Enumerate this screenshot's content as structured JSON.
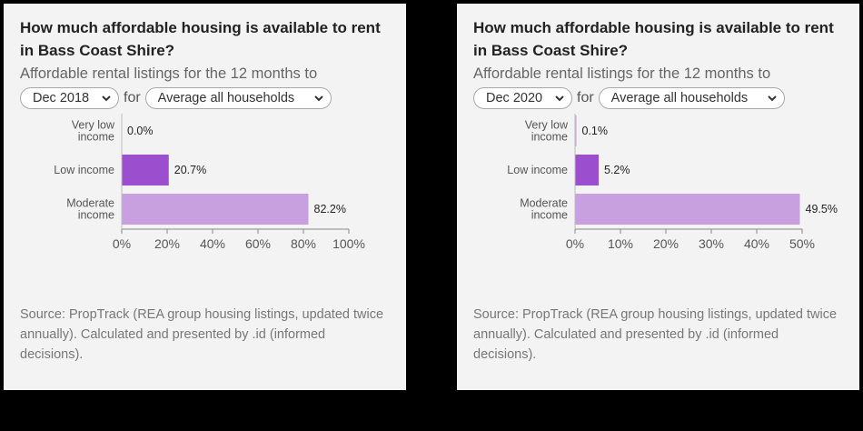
{
  "panels": [
    {
      "title": "How much affordable housing is available to rent in Bass Coast Shire?",
      "subtitle": "Affordable rental listings for the 12 months to",
      "period_select": "Dec 2018",
      "for_label": "for",
      "household_select": "Average all households",
      "source": "Source: PropTrack (REA group housing listings, updated twice annually). Calculated and presented by .id (informed decisions)."
    },
    {
      "title": "How much affordable housing is available to rent in Bass Coast Shire?",
      "subtitle": "Affordable rental listings for the 12 months to",
      "period_select": "Dec 2020",
      "for_label": "for",
      "household_select": "Average all households",
      "source": "Source: PropTrack (REA group housing listings, updated twice annually). Calculated and presented by .id (informed decisions)."
    }
  ],
  "chart_data": [
    {
      "type": "bar",
      "orientation": "horizontal",
      "categories": [
        [
          "Very low",
          "income"
        ],
        [
          "Low income"
        ],
        [
          "Moderate",
          "income"
        ]
      ],
      "values": [
        0.0,
        20.7,
        82.2
      ],
      "value_labels": [
        "0.0%",
        "20.7%",
        "82.2%"
      ],
      "xlim": [
        0,
        100
      ],
      "ticks": [
        0,
        20,
        40,
        60,
        80,
        100
      ],
      "tick_labels": [
        "0%",
        "20%",
        "40%",
        "60%",
        "80%",
        "100%"
      ],
      "colors": [
        "#8e44c9",
        "#9b4fcf",
        "#c8a0e0"
      ],
      "grid": false
    },
    {
      "type": "bar",
      "orientation": "horizontal",
      "categories": [
        [
          "Very low",
          "income"
        ],
        [
          "Low income"
        ],
        [
          "Moderate",
          "income"
        ]
      ],
      "values": [
        0.1,
        5.2,
        49.5
      ],
      "value_labels": [
        "0.1%",
        "5.2%",
        "49.5%"
      ],
      "xlim": [
        0,
        50
      ],
      "ticks": [
        0,
        10,
        20,
        30,
        40,
        50
      ],
      "tick_labels": [
        "0%",
        "10%",
        "20%",
        "30%",
        "40%",
        "50%"
      ],
      "colors": [
        "#c8a0e0",
        "#9b4fcf",
        "#c8a0e0"
      ],
      "grid": false
    }
  ]
}
